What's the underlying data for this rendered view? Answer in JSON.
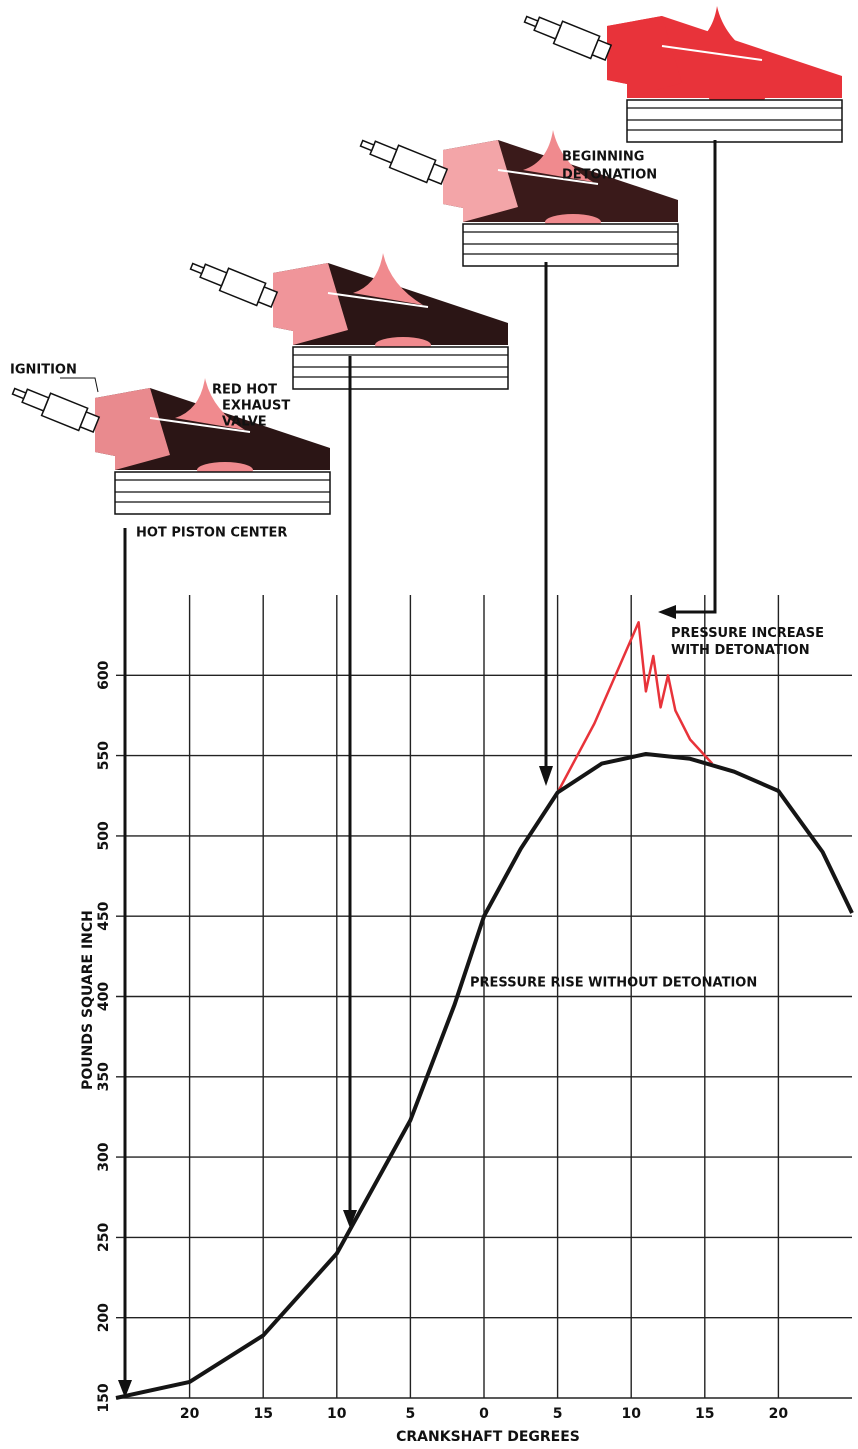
{
  "chart_data": {
    "type": "line",
    "x_label": "CRANKSHAFT DEGREES",
    "y_label": "POUNDS SQUARE INCH",
    "xlim": [
      -25,
      25
    ],
    "ylim": [
      150,
      650
    ],
    "xticks": [
      {
        "value": -20,
        "label": "20"
      },
      {
        "value": -15,
        "label": "15"
      },
      {
        "value": -10,
        "label": "10"
      },
      {
        "value": -5,
        "label": "5"
      },
      0,
      5,
      10,
      15,
      20
    ],
    "yticks": [
      150,
      200,
      250,
      300,
      350,
      400,
      450,
      500,
      550,
      600
    ],
    "grid": true,
    "series": [
      {
        "name": "PRESSURE RISE WITHOUT DETONATION",
        "color": "#151515",
        "x": [
          -25,
          -20,
          -15,
          -10,
          -5,
          -2,
          0,
          2.5,
          5,
          8,
          11,
          14,
          17,
          20,
          23,
          25
        ],
        "values": [
          150,
          160,
          189,
          240,
          323,
          395,
          450,
          492,
          527,
          545,
          551,
          548,
          540,
          528,
          490,
          452
        ]
      },
      {
        "name": "PRESSURE INCREASE WITH DETONATION",
        "color": "#e8333a",
        "x": [
          5,
          7.5,
          10.5,
          11,
          11.5,
          12,
          12.5,
          13,
          14,
          15.5
        ],
        "values": [
          527,
          570,
          633,
          590,
          612,
          580,
          600,
          578,
          560,
          545
        ]
      }
    ],
    "annotations": {
      "ignition": [
        "IGNITION"
      ],
      "exhaust_valve": [
        "RED HOT",
        "EXHAUST",
        "VALVE"
      ],
      "piston": [
        "HOT PISTON CENTER"
      ],
      "beginning": [
        "BEGINNING",
        "DETONATION"
      ]
    }
  }
}
